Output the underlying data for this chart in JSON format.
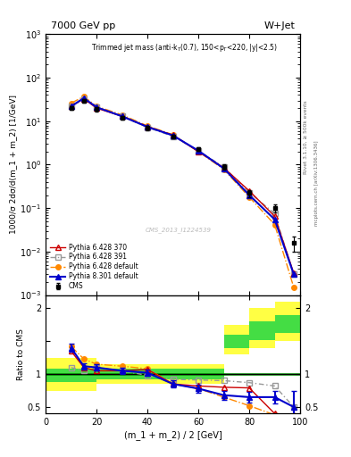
{
  "title_top": "7000 GeV pp",
  "title_right": "W+Jet",
  "annotation": "Trimmed jet mass (anti-k$_T$(0.7), 150<p$_T$<220, |y|<2.5)",
  "watermark": "CMS_2013_I1224539",
  "xlabel": "(m_1 + m_2) / 2 [GeV]",
  "ylabel_main": "1000/σ 2dσ/d(m_1 + m_2) [1/GeV]",
  "ylabel_ratio": "Ratio to CMS",
  "xlim": [
    0,
    100
  ],
  "ylim_main": [
    0.001,
    1000.0
  ],
  "ylim_ratio": [
    0.4,
    2.2
  ],
  "cms_x": [
    10,
    15,
    20,
    30,
    40,
    50,
    60,
    70,
    80,
    90,
    97.5
  ],
  "cms_y": [
    20,
    30,
    19,
    12,
    7,
    4.5,
    2.3,
    0.9,
    0.22,
    0.1,
    0.016
  ],
  "cms_yerr_lo": [
    2,
    3,
    2,
    1.2,
    0.7,
    0.4,
    0.2,
    0.12,
    0.04,
    0.02,
    0.006
  ],
  "cms_yerr_hi": [
    2,
    3,
    2,
    1.2,
    0.7,
    0.4,
    0.2,
    0.12,
    0.04,
    0.02,
    0.006
  ],
  "p6370_x": [
    10,
    15,
    20,
    30,
    40,
    50,
    60,
    70,
    80,
    90,
    97.5
  ],
  "p6370_y": [
    22,
    33,
    20,
    13,
    7.5,
    4.8,
    2.0,
    0.85,
    0.25,
    0.065,
    0.0032
  ],
  "p6370_color": "#cc0000",
  "p6370_label": "Pythia 6.428 370",
  "p6391_x": [
    10,
    15,
    20,
    30,
    40,
    50,
    60,
    70,
    80,
    90,
    97.5
  ],
  "p6391_y": [
    22,
    32,
    21,
    13,
    7.2,
    4.5,
    2.1,
    0.88,
    0.23,
    0.075,
    0.003
  ],
  "p6391_color": "#999999",
  "p6391_label": "Pythia 6.428 391",
  "p6def_x": [
    10,
    15,
    20,
    30,
    40,
    50,
    60,
    70,
    80,
    90,
    97.5
  ],
  "p6def_y": [
    26,
    37,
    22,
    14,
    7.8,
    4.9,
    2.0,
    0.78,
    0.18,
    0.042,
    0.0015
  ],
  "p6def_color": "#ff8800",
  "p6def_label": "Pythia 6.428 default",
  "p8def_x": [
    10,
    15,
    20,
    30,
    40,
    50,
    60,
    70,
    80,
    90,
    97.5
  ],
  "p8def_y": [
    22,
    34,
    21,
    13,
    7.4,
    4.7,
    2.1,
    0.82,
    0.2,
    0.055,
    0.003
  ],
  "p8def_color": "#0000cc",
  "p8def_label": "Pythia 8.301 default",
  "ratio_x": [
    10,
    15,
    20,
    30,
    40,
    50,
    60,
    70,
    80,
    90,
    97.5
  ],
  "ratio_p6370": [
    1.35,
    1.1,
    1.05,
    1.05,
    1.07,
    0.85,
    0.82,
    0.8,
    0.79,
    0.4,
    0.38
  ],
  "ratio_p6391": [
    1.1,
    1.05,
    1.1,
    1.05,
    0.98,
    0.92,
    0.91,
    0.9,
    0.87,
    0.82,
    0.5
  ],
  "ratio_p6def": [
    1.42,
    1.23,
    1.15,
    1.12,
    1.08,
    0.85,
    0.78,
    0.65,
    0.52,
    0.38,
    0.25
  ],
  "ratio_p8def": [
    1.4,
    1.12,
    1.1,
    1.05,
    1.02,
    0.85,
    0.78,
    0.68,
    0.65,
    0.65,
    0.5
  ],
  "ratio_p8def_err": [
    0.06,
    0.05,
    0.05,
    0.05,
    0.05,
    0.05,
    0.06,
    0.07,
    0.08,
    0.1,
    0.25
  ],
  "band_x_edges": [
    0,
    20,
    30,
    40,
    50,
    60,
    70,
    80,
    90,
    100
  ],
  "band_yellow_lo": [
    0.75,
    0.85,
    0.85,
    0.85,
    0.85,
    0.85,
    1.3,
    1.4,
    1.5
  ],
  "band_yellow_hi": [
    1.25,
    1.15,
    1.15,
    1.15,
    1.15,
    1.15,
    1.75,
    2.0,
    2.1
  ],
  "band_green_lo": [
    0.88,
    0.92,
    0.92,
    0.92,
    0.92,
    0.92,
    1.4,
    1.52,
    1.62
  ],
  "band_green_hi": [
    1.08,
    1.08,
    1.08,
    1.08,
    1.08,
    1.08,
    1.6,
    1.8,
    1.9
  ],
  "right_label1": "Rivet 3.1.10, ≥ 500k events",
  "right_label2": "mcplots.cern.ch [arXiv:1306.3436]"
}
